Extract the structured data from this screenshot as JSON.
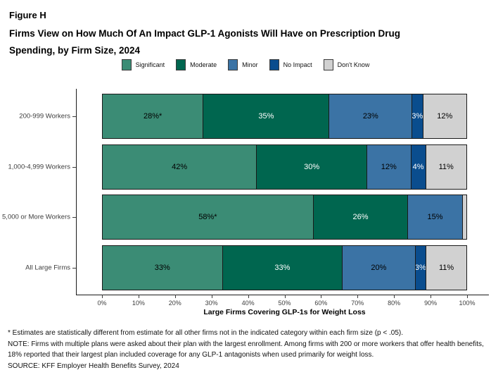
{
  "figure": {
    "label": "Figure H",
    "title": "Firms View on How Much Of An Impact GLP-1 Agonists Will Have on Prescription Drug Spending, by Firm Size, 2024"
  },
  "chart_data": {
    "type": "bar",
    "orientation": "horizontal",
    "stacked": true,
    "categories": [
      "200-999 Workers",
      "1,000-4,999 Workers",
      "5,000 or More Workers",
      "All Large Firms"
    ],
    "series": [
      {
        "name": "Significant",
        "color": "#3B8C75",
        "label_color": "#000000",
        "values": [
          28,
          42,
          58,
          33
        ],
        "labels": [
          "28%*",
          "42%",
          "58%*",
          "33%"
        ]
      },
      {
        "name": "Moderate",
        "color": "#00664F",
        "label_color": "#ffffff",
        "values": [
          35,
          30,
          26,
          33
        ],
        "labels": [
          "35%",
          "30%",
          "26%",
          "33%"
        ]
      },
      {
        "name": "Minor",
        "color": "#3B73A5",
        "label_color": "#000000",
        "values": [
          23,
          12,
          15,
          20
        ],
        "labels": [
          "23%",
          "12%",
          "15%",
          "20%"
        ]
      },
      {
        "name": "No Impact",
        "color": "#0A4D8E",
        "label_color": "#ffffff",
        "values": [
          3,
          4,
          0,
          3
        ],
        "labels": [
          "3%",
          "4%",
          "",
          "3%"
        ]
      },
      {
        "name": "Don't Know",
        "color": "#D1D1D1",
        "label_color": "#000000",
        "values": [
          12,
          11,
          1,
          11
        ],
        "labels": [
          "12%",
          "11%",
          "",
          "11%"
        ]
      }
    ],
    "xlabel": "Large Firms Covering GLP-1s for Weight Loss",
    "x_ticks": [
      "0%",
      "10%",
      "20%",
      "30%",
      "40%",
      "50%",
      "60%",
      "70%",
      "80%",
      "90%",
      "100%"
    ],
    "xlim": [
      0,
      100
    ],
    "legend_position": "top",
    "grid": false
  },
  "notes": {
    "asterisk": "* Estimates are statistically different from estimate for all other firms not in the indicated category within each firm size (p < .05).",
    "note": "NOTE: Firms with multiple plans were asked about their plan with the largest enrollment.  Among firms with 200 or more workers that offer health benefits, 18% reported that their largest plan included coverage for any GLP-1 antagonists when used primarily for weight loss.",
    "source": "SOURCE: KFF Employer Health Benefits Survey, 2024"
  }
}
